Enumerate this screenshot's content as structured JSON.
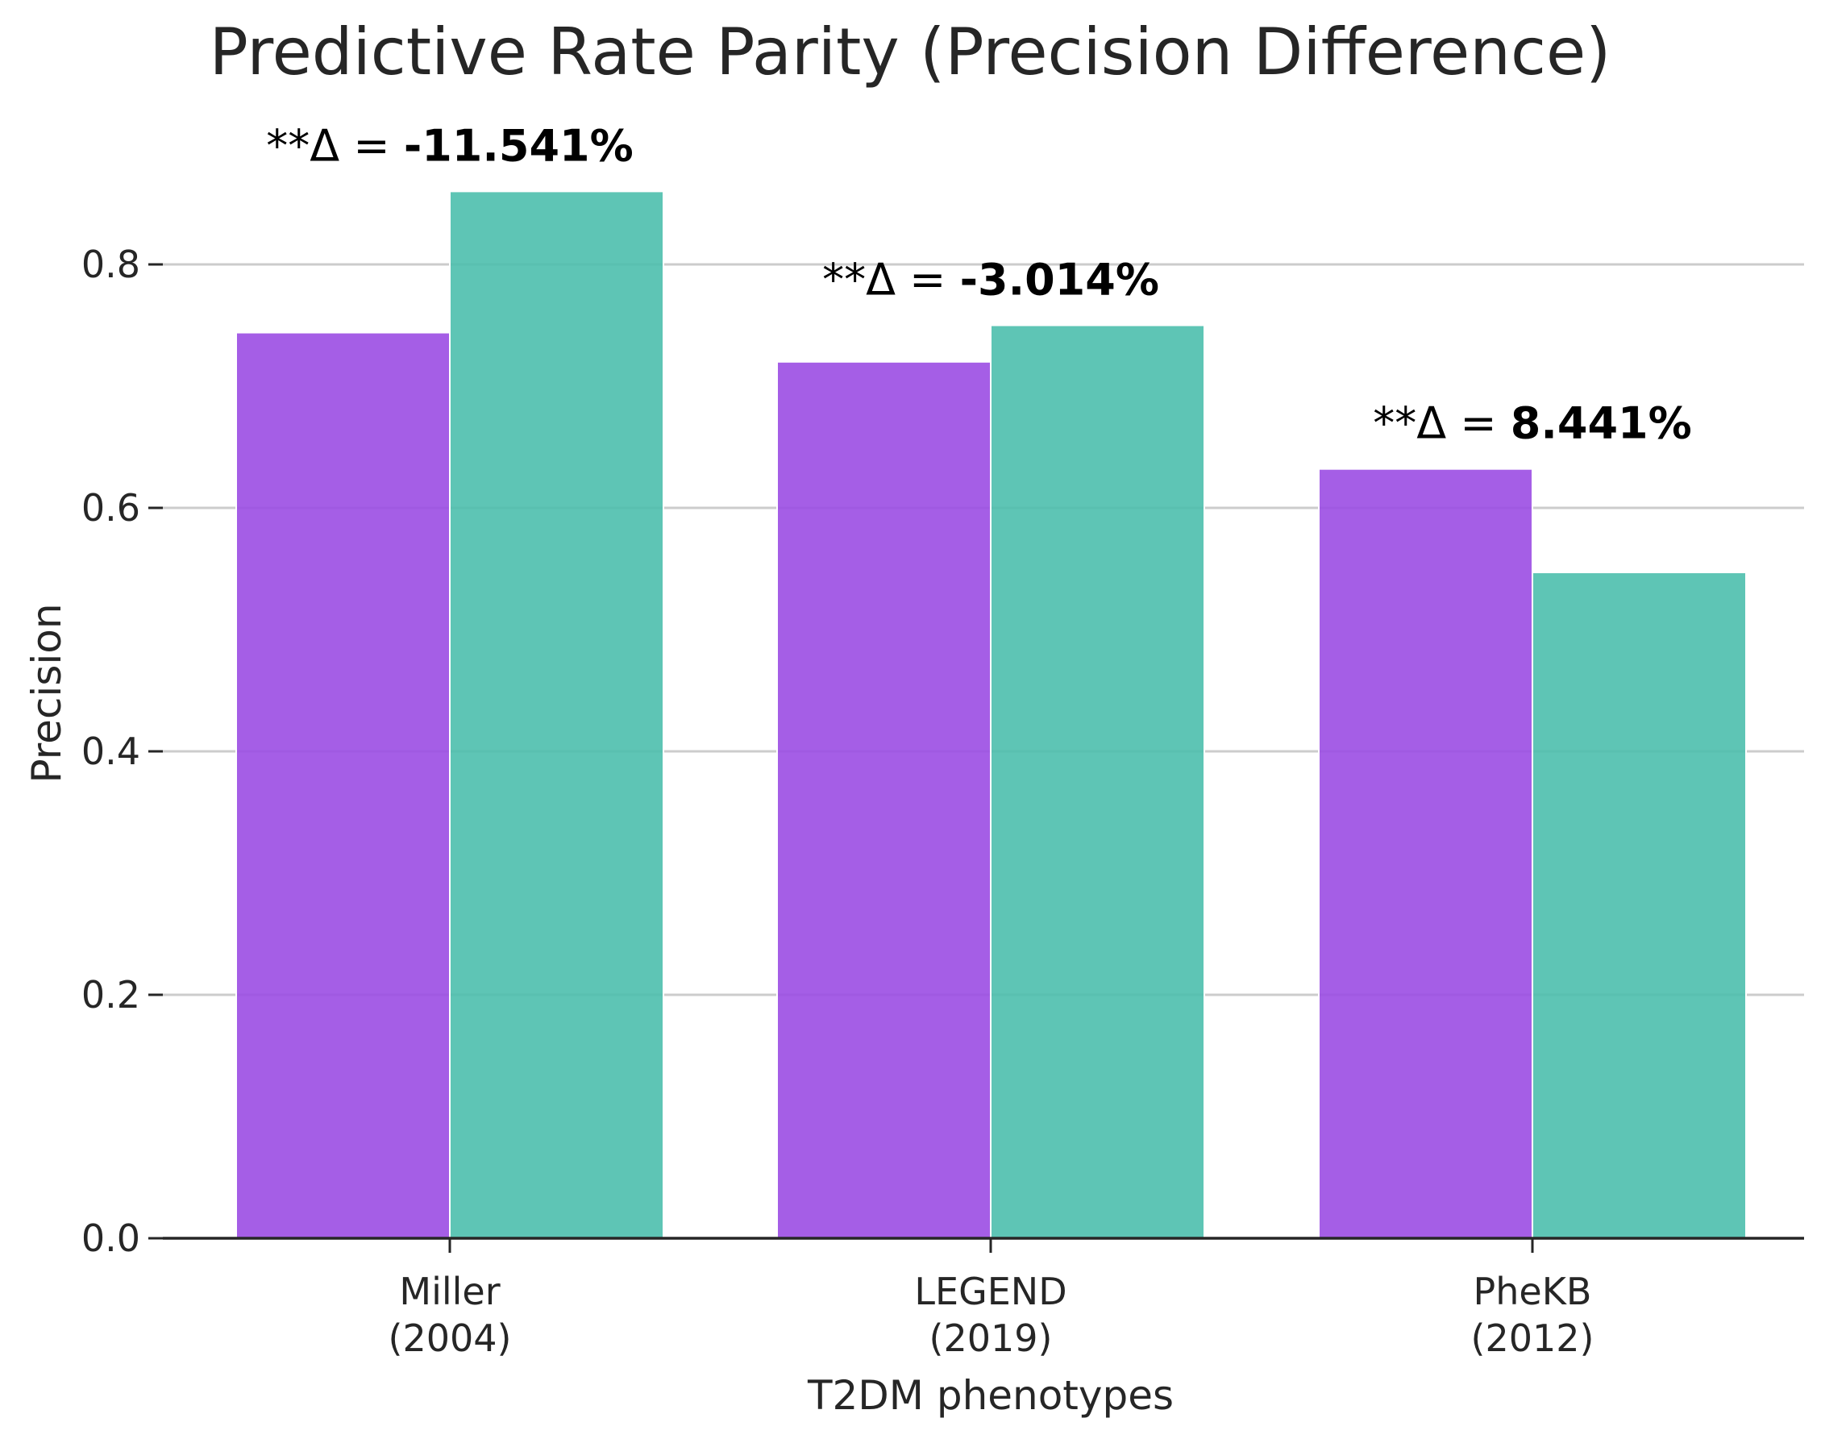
{
  "chart_data": {
    "type": "bar",
    "title": "Predictive Rate Parity (Precision Difference)",
    "xlabel": "T2DM phenotypes",
    "ylabel": "Precision",
    "ylim": [
      0,
      0.86
    ],
    "yticks": [
      0.0,
      0.2,
      0.4,
      0.6,
      0.8
    ],
    "ytick_labels": [
      "0.0",
      "0.2",
      "0.4",
      "0.6",
      "0.8"
    ],
    "grid": "horizontal",
    "categories": [
      [
        "Miller",
        "(2004)"
      ],
      [
        "LEGEND",
        "(2019)"
      ],
      [
        "PheKB",
        "(2012)"
      ]
    ],
    "series": [
      {
        "values": [
          0.744,
          0.72,
          0.632
        ],
        "color": "#9b4de3"
      },
      {
        "values": [
          0.86,
          0.75,
          0.547
        ],
        "color": "#4dbfad"
      }
    ],
    "annotations": [
      {
        "prefix": "**Δ = ",
        "value": "-11.541%"
      },
      {
        "prefix": "**Δ = ",
        "value": "-3.014%"
      },
      {
        "prefix": "**Δ = ",
        "value": "8.441%"
      }
    ]
  }
}
